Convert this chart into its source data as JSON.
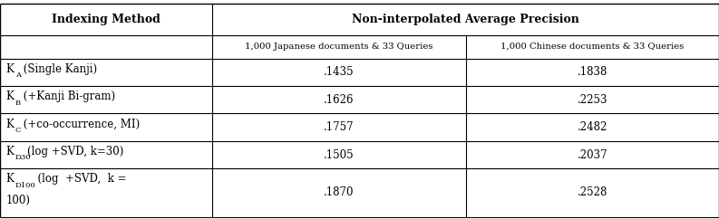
{
  "col_headers": [
    "Indexing Method",
    "Non-interpolated Average Precision"
  ],
  "sub_headers": [
    "1,000 Japanese documents & 33 Queries",
    "1,000 Chinese documents & 33 Queries"
  ],
  "rows": [
    [
      ".1435",
      ".1838"
    ],
    [
      ".1626",
      ".2253"
    ],
    [
      ".1757",
      ".2482"
    ],
    [
      ".1505",
      ".2037"
    ],
    [
      ".1870",
      ".2528"
    ]
  ],
  "col_bounds": [
    0.0,
    0.295,
    0.648,
    1.0
  ],
  "row_heights": [
    1.15,
    0.85,
    1.0,
    1.0,
    1.0,
    1.0,
    1.75
  ],
  "background_color": "#ffffff",
  "font_size": 8.5,
  "header_font_size": 9.0,
  "subheader_font_size": 7.2
}
